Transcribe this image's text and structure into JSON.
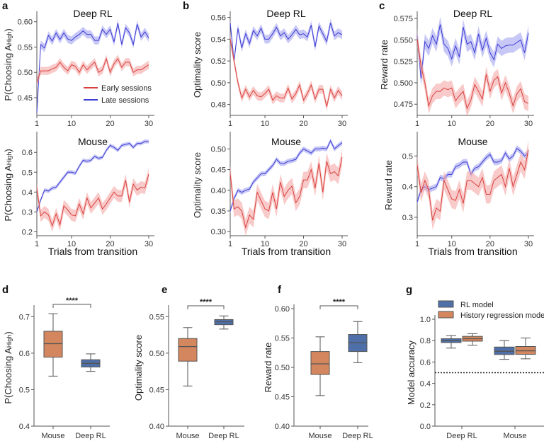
{
  "colors": {
    "early_line": "#d9413e",
    "early_fill": "#f3a6a5",
    "late_line": "#3b3bd4",
    "late_fill": "#a3a3f2",
    "mouse_box": "#d4875e",
    "deeprl_box": "#4f6fa8",
    "rl_model_box": "#4f6fa8",
    "history_box": "#d4875e",
    "edge": "#555555"
  },
  "legend_a": {
    "early": "Early sessions",
    "late": "Late sessions"
  },
  "xlabel": "Trials from transition",
  "chart_data": [
    {
      "id": "a-top",
      "panel": "a",
      "type": "line",
      "title": "Deep RL",
      "ylabel": "P(Choosing A",
      "ylabel_sub": "High",
      "ylabel_end": ")",
      "ylim": [
        0.415,
        0.615
      ],
      "yticks": [
        "0.45",
        "0.50",
        "0.55",
        "0.60"
      ],
      "xlim": [
        1,
        30
      ],
      "xticks": [
        "1",
        "10",
        "20",
        "30"
      ],
      "series": [
        {
          "name": "Late sessions",
          "key": "late",
          "sem": 0.008,
          "values": [
            0.42,
            0.555,
            0.548,
            0.573,
            0.562,
            0.578,
            0.565,
            0.578,
            0.566,
            0.563,
            0.57,
            0.575,
            0.582,
            0.575,
            0.575,
            0.563,
            0.563,
            0.585,
            0.575,
            0.585,
            0.56,
            0.597,
            0.555,
            0.588,
            0.578,
            0.555,
            0.595,
            0.57,
            0.58,
            0.568
          ]
        },
        {
          "name": "Early sessions",
          "key": "early",
          "sem": 0.008,
          "values": [
            0.48,
            0.503,
            0.503,
            0.503,
            0.507,
            0.51,
            0.52,
            0.51,
            0.503,
            0.515,
            0.512,
            0.5,
            0.515,
            0.505,
            0.513,
            0.52,
            0.5,
            0.505,
            0.527,
            0.5,
            0.517,
            0.527,
            0.51,
            0.52,
            0.52,
            0.5,
            0.505,
            0.505,
            0.51,
            0.515
          ]
        }
      ]
    },
    {
      "id": "a-bot",
      "panel": "",
      "type": "line",
      "title": "Mouse",
      "ylabel": "P(Choosing A",
      "ylabel_sub": "High",
      "ylabel_end": ")",
      "ylim": [
        0.18,
        0.69
      ],
      "yticks": [
        "0.2",
        "0.3",
        "0.4",
        "0.5",
        "0.6"
      ],
      "xlim": [
        1,
        30
      ],
      "xticks": [
        "1",
        "10",
        "20",
        "30"
      ],
      "series": [
        {
          "name": "Late sessions",
          "key": "late",
          "sem": 0.01,
          "values": [
            0.3,
            0.36,
            0.41,
            0.405,
            0.42,
            0.425,
            0.45,
            0.475,
            0.5,
            0.5,
            0.495,
            0.53,
            0.56,
            0.555,
            0.56,
            0.58,
            0.57,
            0.575,
            0.61,
            0.635,
            0.625,
            0.61,
            0.635,
            0.64,
            0.645,
            0.625,
            0.645,
            0.645,
            0.655,
            0.655
          ]
        },
        {
          "name": "Early sessions",
          "key": "early",
          "sem": 0.03,
          "values": [
            0.42,
            0.28,
            0.3,
            0.285,
            0.23,
            0.29,
            0.235,
            0.33,
            0.31,
            0.285,
            0.28,
            0.34,
            0.29,
            0.37,
            0.32,
            0.345,
            0.37,
            0.315,
            0.34,
            0.37,
            0.4,
            0.38,
            0.38,
            0.46,
            0.35,
            0.44,
            0.41,
            0.425,
            0.42,
            0.49
          ]
        }
      ]
    },
    {
      "id": "b-top",
      "panel": "b",
      "type": "line",
      "title": "Deep RL",
      "ylabel": "Optimality score",
      "ylim": [
        0.47,
        0.563
      ],
      "yticks": [
        "0.48",
        "0.50",
        "0.52",
        "0.54",
        "0.56"
      ],
      "xlim": [
        1,
        30
      ],
      "xticks": [
        "1",
        "10",
        "20",
        "30"
      ],
      "series": [
        {
          "name": "Late sessions",
          "key": "late",
          "sem": 0.004,
          "values": [
            0.555,
            0.52,
            0.55,
            0.532,
            0.545,
            0.536,
            0.548,
            0.543,
            0.55,
            0.54,
            0.54,
            0.545,
            0.551,
            0.543,
            0.546,
            0.54,
            0.544,
            0.549,
            0.544,
            0.545,
            0.542,
            0.553,
            0.533,
            0.552,
            0.545,
            0.538,
            0.555,
            0.543,
            0.546,
            0.544
          ]
        },
        {
          "name": "Early sessions",
          "key": "early",
          "sem": 0.004,
          "values": [
            0.54,
            0.52,
            0.5,
            0.486,
            0.494,
            0.487,
            0.493,
            0.488,
            0.487,
            0.49,
            0.494,
            0.484,
            0.488,
            0.486,
            0.486,
            0.495,
            0.485,
            0.49,
            0.498,
            0.484,
            0.49,
            0.498,
            0.485,
            0.494,
            0.494,
            0.478,
            0.494,
            0.486,
            0.493,
            0.488
          ]
        }
      ]
    },
    {
      "id": "b-bot",
      "panel": "",
      "type": "line",
      "title": "Mouse",
      "ylabel": "Optimality score",
      "ylim": [
        0.29,
        0.535
      ],
      "yticks": [
        "0.30",
        "0.35",
        "0.40",
        "0.45",
        "0.50"
      ],
      "xlim": [
        1,
        30
      ],
      "xticks": [
        "1",
        "10",
        "20",
        "30"
      ],
      "series": [
        {
          "name": "Late sessions",
          "key": "late",
          "sem": 0.006,
          "values": [
            0.35,
            0.38,
            0.4,
            0.395,
            0.4,
            0.403,
            0.42,
            0.43,
            0.44,
            0.44,
            0.45,
            0.46,
            0.475,
            0.465,
            0.465,
            0.47,
            0.472,
            0.475,
            0.49,
            0.5,
            0.495,
            0.49,
            0.5,
            0.5,
            0.502,
            0.5,
            0.52,
            0.5,
            0.508,
            0.515
          ]
        },
        {
          "name": "Early sessions",
          "key": "early",
          "sem": 0.02,
          "values": [
            0.44,
            0.355,
            0.36,
            0.35,
            0.31,
            0.34,
            0.33,
            0.395,
            0.375,
            0.355,
            0.35,
            0.395,
            0.355,
            0.42,
            0.385,
            0.4,
            0.41,
            0.37,
            0.385,
            0.425,
            0.425,
            0.45,
            0.405,
            0.465,
            0.395,
            0.47,
            0.44,
            0.445,
            0.435,
            0.48
          ]
        }
      ]
    },
    {
      "id": "c-top",
      "panel": "c",
      "type": "line",
      "title": "Deep RL",
      "ylabel": "Reward rate",
      "ylim": [
        0.462,
        0.58
      ],
      "yticks": [
        "0.475",
        "0.500",
        "0.525",
        "0.550",
        "0.575"
      ],
      "xlim": [
        1,
        30
      ],
      "xticks": [
        "1",
        "10",
        "20",
        "30"
      ],
      "series": [
        {
          "name": "Late sessions",
          "key": "late",
          "sem": 0.009,
          "values": [
            0.555,
            0.505,
            0.548,
            0.54,
            0.555,
            0.545,
            0.568,
            0.545,
            0.54,
            0.528,
            0.543,
            0.53,
            0.565,
            0.545,
            0.548,
            0.535,
            0.557,
            0.538,
            0.552,
            0.535,
            0.527,
            0.545,
            0.54,
            0.543,
            0.544,
            0.544,
            0.547,
            0.55,
            0.535,
            0.558
          ]
        },
        {
          "name": "Early sessions",
          "key": "early",
          "sem": 0.009,
          "values": [
            0.55,
            0.52,
            0.5,
            0.473,
            0.485,
            0.49,
            0.49,
            0.494,
            0.492,
            0.494,
            0.479,
            0.485,
            0.49,
            0.47,
            0.48,
            0.498,
            0.49,
            0.481,
            0.51,
            0.49,
            0.503,
            0.507,
            0.488,
            0.5,
            0.488,
            0.473,
            0.487,
            0.493,
            0.478,
            0.476
          ]
        }
      ]
    },
    {
      "id": "c-bot",
      "panel": "",
      "type": "line",
      "title": "Mouse",
      "ylabel": "Reward rate",
      "ylim": [
        0.24,
        0.57
      ],
      "yticks": [
        "0.3",
        "0.4",
        "0.5"
      ],
      "xlim": [
        1,
        30
      ],
      "xticks": [
        "1",
        "10",
        "20",
        "30"
      ],
      "series": [
        {
          "name": "Late sessions",
          "key": "late",
          "sem": 0.01,
          "values": [
            0.35,
            0.39,
            0.4,
            0.39,
            0.395,
            0.4,
            0.43,
            0.425,
            0.44,
            0.44,
            0.465,
            0.47,
            0.48,
            0.48,
            0.44,
            0.46,
            0.465,
            0.48,
            0.495,
            0.505,
            0.48,
            0.48,
            0.485,
            0.51,
            0.49,
            0.5,
            0.525,
            0.515,
            0.5,
            0.51
          ]
        },
        {
          "name": "Early sessions",
          "key": "early",
          "sem": 0.03,
          "values": [
            0.47,
            0.38,
            0.42,
            0.39,
            0.29,
            0.33,
            0.32,
            0.42,
            0.39,
            0.36,
            0.355,
            0.39,
            0.345,
            0.42,
            0.42,
            0.41,
            0.4,
            0.43,
            0.375,
            0.375,
            0.42,
            0.43,
            0.44,
            0.4,
            0.46,
            0.4,
            0.44,
            0.48,
            0.455,
            0.52
          ]
        }
      ]
    },
    {
      "id": "d",
      "panel": "d",
      "type": "box",
      "ylabel": "P(Choosing A",
      "ylabel_sub": "High",
      "ylabel_end": ")",
      "ylim": [
        0.4,
        0.72
      ],
      "yticks": [
        "0.4",
        "0.5",
        "0.6",
        "0.7"
      ],
      "categories": [
        "Mouse",
        "Deep RL"
      ],
      "significance": "****",
      "boxes": [
        {
          "category": "Mouse",
          "color_key": "mouse_box",
          "min": 0.537,
          "q1": 0.589,
          "median": 0.626,
          "q3": 0.66,
          "max": 0.708
        },
        {
          "category": "Deep RL",
          "color_key": "deeprl_box",
          "min": 0.55,
          "q1": 0.562,
          "median": 0.572,
          "q3": 0.582,
          "max": 0.598
        }
      ]
    },
    {
      "id": "e",
      "panel": "e",
      "type": "box",
      "ylabel": "Optimality score",
      "ylim": [
        0.4,
        0.56
      ],
      "yticks": [
        "0.40",
        "0.45",
        "0.50",
        "0.55"
      ],
      "categories": [
        "Mouse",
        "Deep RL"
      ],
      "significance": "****",
      "boxes": [
        {
          "category": "Mouse",
          "color_key": "mouse_box",
          "min": 0.455,
          "q1": 0.489,
          "median": 0.509,
          "q3": 0.52,
          "max": 0.535
        },
        {
          "category": "Deep RL",
          "color_key": "deeprl_box",
          "min": 0.533,
          "q1": 0.539,
          "median": 0.543,
          "q3": 0.546,
          "max": 0.551
        }
      ]
    },
    {
      "id": "f",
      "panel": "f",
      "type": "box",
      "ylabel": "Reward rate",
      "ylim": [
        0.4,
        0.6
      ],
      "yticks": [
        "0.40",
        "0.45",
        "0.50",
        "0.55",
        "0.60"
      ],
      "categories": [
        "Mouse",
        "Deep RL"
      ],
      "significance": "****",
      "boxes": [
        {
          "category": "Mouse",
          "color_key": "mouse_box",
          "min": 0.452,
          "q1": 0.488,
          "median": 0.506,
          "q3": 0.527,
          "max": 0.552
        },
        {
          "category": "Deep RL",
          "color_key": "deeprl_box",
          "min": 0.508,
          "q1": 0.527,
          "median": 0.542,
          "q3": 0.556,
          "max": 0.578
        }
      ]
    },
    {
      "id": "g",
      "panel": "g",
      "type": "box",
      "ylabel": "Model accuracy",
      "ylim": [
        0,
        1
      ],
      "yticks": [
        "0.0",
        "0.2",
        "0.4",
        "0.6",
        "0.8",
        "1.0"
      ],
      "categories": [
        "Deep RL",
        "Mouse"
      ],
      "chance_line": 0.5,
      "legend": [
        {
          "name": "RL model",
          "color_key": "rl_model_box"
        },
        {
          "name": "History regression model",
          "color_key": "history_box"
        }
      ],
      "boxes": [
        {
          "category": "Deep RL",
          "model": "RL model",
          "color_key": "rl_model_box",
          "min": 0.73,
          "q1": 0.782,
          "median": 0.8,
          "q3": 0.818,
          "max": 0.848
        },
        {
          "category": "Deep RL",
          "model": "History regression model",
          "color_key": "history_box",
          "min": 0.757,
          "q1": 0.795,
          "median": 0.818,
          "q3": 0.84,
          "max": 0.865
        },
        {
          "category": "Mouse",
          "model": "RL model",
          "color_key": "rl_model_box",
          "min": 0.625,
          "q1": 0.67,
          "median": 0.7,
          "q3": 0.74,
          "max": 0.8
        },
        {
          "category": "Mouse",
          "model": "History regression model",
          "color_key": "history_box",
          "min": 0.63,
          "q1": 0.672,
          "median": 0.705,
          "q3": 0.745,
          "max": 0.825
        }
      ]
    }
  ]
}
